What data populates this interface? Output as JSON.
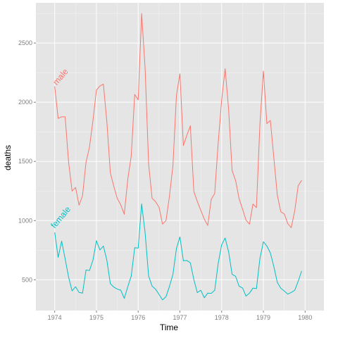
{
  "chart_data": {
    "type": "line",
    "xlabel": "Time",
    "ylabel": "deaths",
    "xlim": [
      1973.55,
      1980.45
    ],
    "ylim": [
      240,
      2840
    ],
    "x_ticks": [
      1974,
      1975,
      1976,
      1977,
      1978,
      1979,
      1980
    ],
    "y_ticks": [
      500,
      1000,
      1500,
      2000,
      2500
    ],
    "x_minor_ticks": [
      1974.5,
      1975.5,
      1976.5,
      1977.5,
      1978.5,
      1979.5
    ],
    "y_minor_ticks": [
      750,
      1250,
      1750,
      2250,
      2750
    ],
    "grid": true,
    "legend": "none",
    "background_color": "#e5e5e5",
    "grid_color": "#ffffff",
    "start_year": 1974,
    "months_per_year": 12,
    "series": [
      {
        "name": "male",
        "color": "#f8766d",
        "label_at": [
          1974.05,
          2140
        ],
        "values": [
          2134,
          1863,
          1877,
          1877,
          1492,
          1249,
          1280,
          1131,
          1209,
          1492,
          1621,
          1846,
          2103,
          2137,
          2153,
          1833,
          1403,
          1288,
          1186,
          1133,
          1053,
          1347,
          1545,
          2066,
          2020,
          2750,
          2283,
          1479,
          1189,
          1160,
          1113,
          970,
          999,
          1208,
          1467,
          2059,
          2240,
          1634,
          1722,
          1801,
          1246,
          1162,
          1087,
          1013,
          959,
          1179,
          1229,
          1655,
          2019,
          2284,
          1942,
          1423,
          1340,
          1187,
          1098,
          1004,
          970,
          1140,
          1110,
          1812,
          2263,
          1820,
          1846,
          1531,
          1215,
          1075,
          1056,
          975,
          940,
          1081,
          1294,
          1341
        ]
      },
      {
        "name": "female",
        "color": "#00bfc4",
        "label_at": [
          1974.0,
          930
        ],
        "values": [
          901,
          689,
          827,
          677,
          522,
          406,
          441,
          393,
          387,
          582,
          578,
          666,
          830,
          752,
          785,
          664,
          467,
          438,
          421,
          412,
          343,
          440,
          531,
          771,
          767,
          1141,
          896,
          532,
          447,
          420,
          376,
          330,
          357,
          445,
          546,
          764,
          862,
          660,
          663,
          643,
          502,
          392,
          411,
          348,
          387,
          385,
          411,
          638,
          796,
          853,
          737,
          546,
          530,
          446,
          431,
          362,
          387,
          430,
          425,
          679,
          821,
          785,
          727,
          612,
          478,
          429,
          405,
          379,
          393,
          411,
          487,
          574
        ]
      }
    ]
  }
}
